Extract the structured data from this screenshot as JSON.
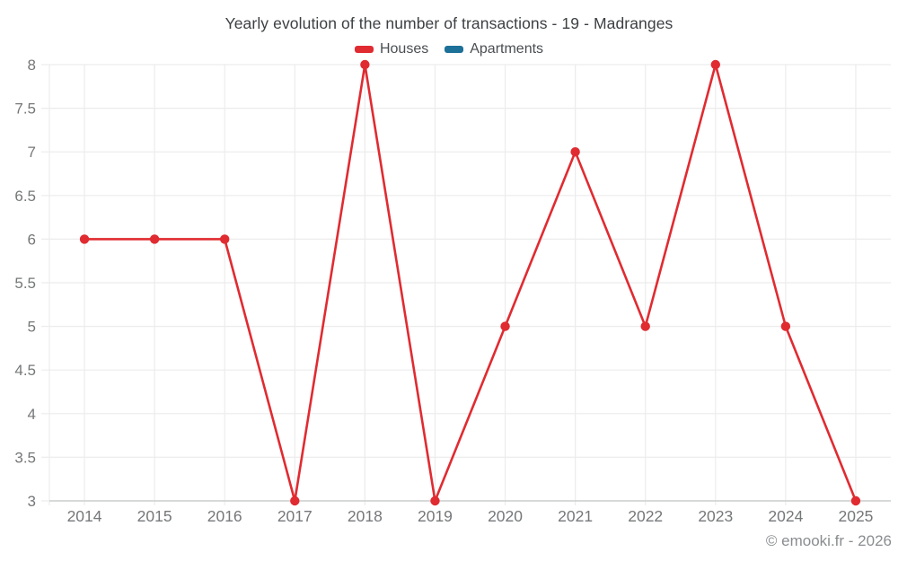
{
  "chart_data": {
    "type": "line",
    "title": "Yearly evolution of the number of transactions - 19 - Madranges",
    "categories": [
      "2014",
      "2015",
      "2016",
      "2017",
      "2018",
      "2019",
      "2020",
      "2021",
      "2022",
      "2023",
      "2024",
      "2025"
    ],
    "series": [
      {
        "name": "Houses",
        "color": "#e02b31",
        "values": [
          6,
          6,
          6,
          3,
          8,
          3,
          5,
          7,
          5,
          8,
          5,
          3
        ]
      },
      {
        "name": "Apartments",
        "color": "#1d7098",
        "values": []
      }
    ],
    "ylim": [
      3,
      8
    ],
    "ytick_step": 0.5,
    "ytick_labels": [
      "3",
      "3.5",
      "4",
      "4.5",
      "5",
      "5.5",
      "6",
      "6.5",
      "7",
      "7.5",
      "8"
    ],
    "xlabel": "",
    "ylabel": "",
    "grid": "both",
    "legend_position": "top"
  },
  "colors": {
    "gridline": "#ececec",
    "axis_line": "#c4c6c8",
    "tick_text": "#757779",
    "title_text": "#3d4043",
    "legend_text": "#4a4e52",
    "footer_text": "#8a8d90"
  },
  "footer": {
    "credit": "© emooki.fr - 2026"
  }
}
